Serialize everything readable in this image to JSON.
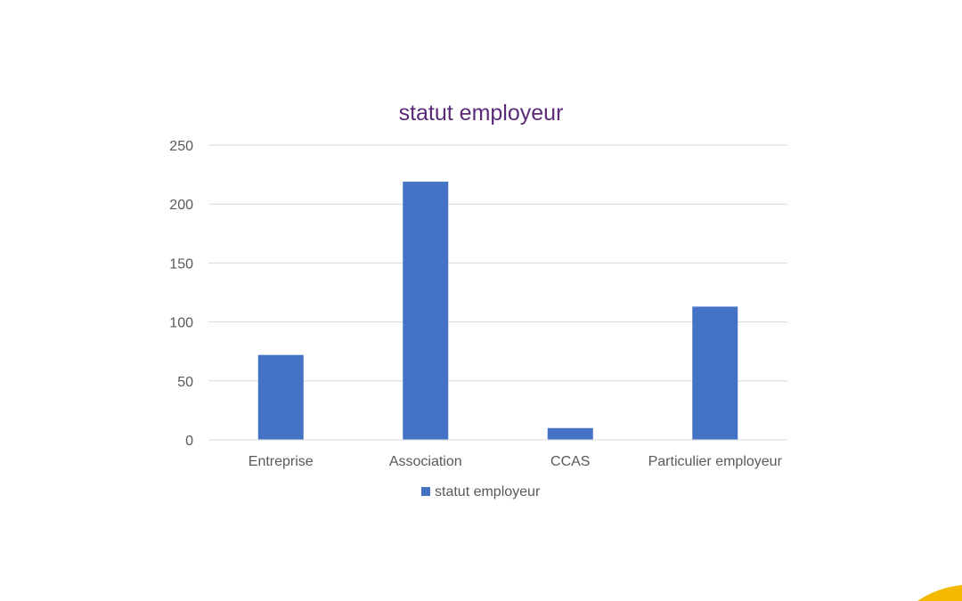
{
  "colors": {
    "bar": "#4472c4",
    "title": "#5b2a78",
    "grid": "#d9d9d9",
    "axis": "#d9d9d9",
    "tick_text": "#595959",
    "corner_accent": "#f5b800"
  },
  "chart_data": {
    "type": "bar",
    "title": "statut employeur",
    "categories": [
      "Entreprise",
      "Association",
      "CCAS",
      "Particulier employeur"
    ],
    "series": [
      {
        "name": "statut employeur",
        "values": [
          72,
          219,
          10,
          113
        ]
      }
    ],
    "xlabel": "",
    "ylabel": "",
    "ylim": [
      0,
      250
    ],
    "yticks": [
      "0",
      "50",
      "100",
      "150",
      "200",
      "250"
    ],
    "grid": true,
    "legend": "bottom"
  }
}
